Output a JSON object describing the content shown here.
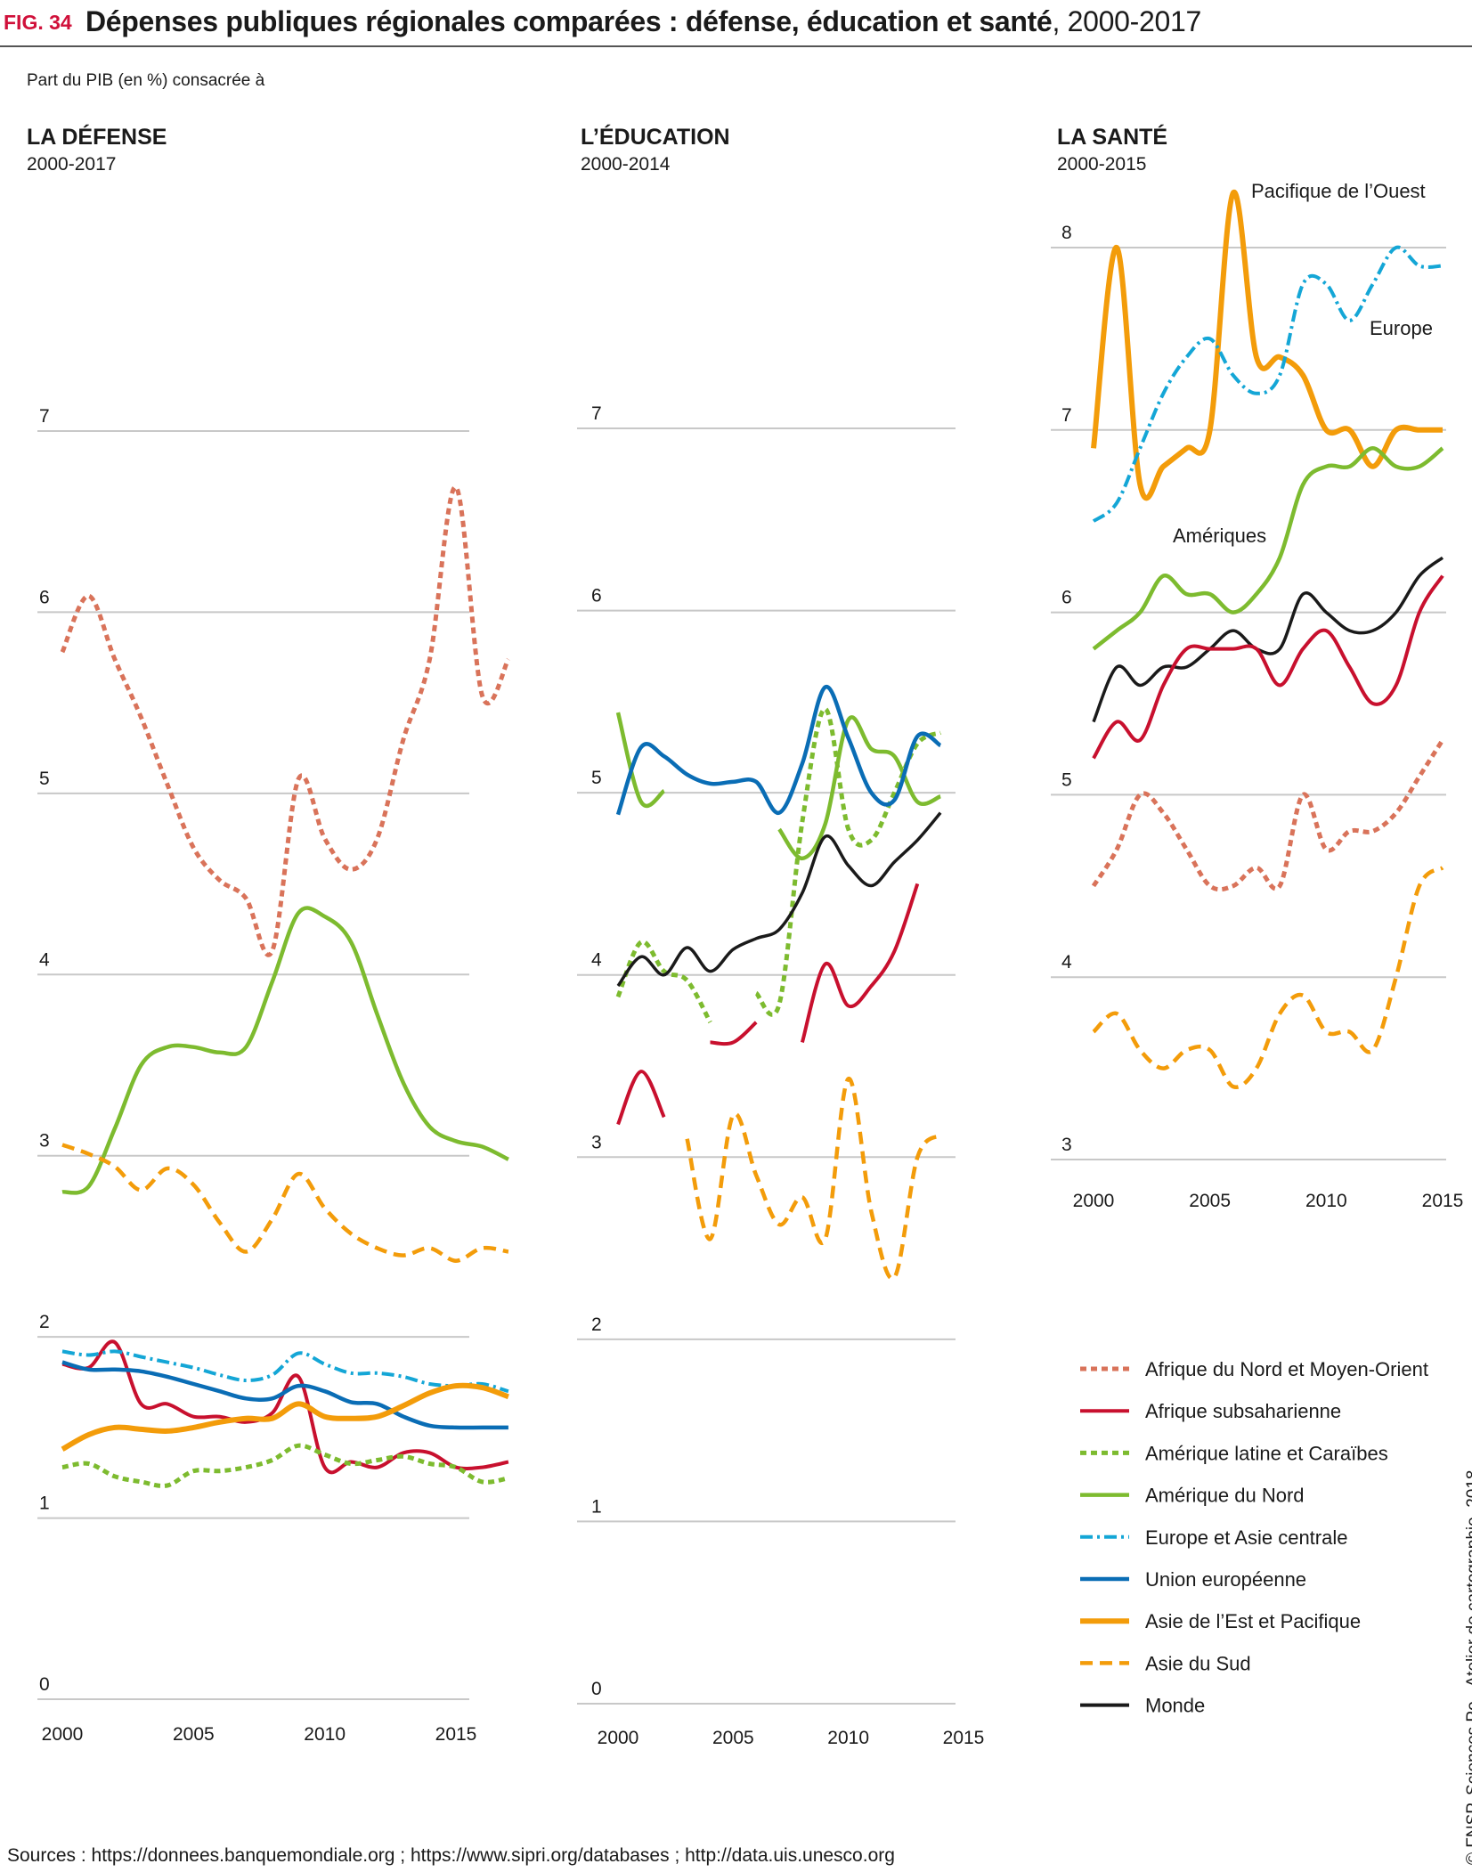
{
  "header": {
    "fig_label": "FIG. 34",
    "title_bold": "Dépenses publiques régionales comparées : défense, éducation et santé",
    "title_rest": ", 2000-2017"
  },
  "subtitle": "Part du PIB (en %) consacrée à",
  "sources": "Sources : https://donnees.banquemondiale.org ; https://www.sipri.org/databases ; http://data.uis.unesco.org",
  "credit": "© FNSP. Sciences Po - Atelier de cartographie, 2018",
  "colors": {
    "mena": "#d9735a",
    "ssa": "#c8102e",
    "lac": "#7dbb2f",
    "na": "#7dbb2f",
    "eca": "#14a6d6",
    "eu": "#0a6db5",
    "eap": "#f39c0a",
    "sa": "#f39c0a",
    "world": "#1a1a1a",
    "grid": "#c8c8c8"
  },
  "chart_data": [
    {
      "type": "line",
      "title": "LA DÉFENSE",
      "period": "2000-2017",
      "xlim": [
        2000,
        2017.5
      ],
      "ylim": [
        0,
        7
      ],
      "yticks": [
        0,
        1,
        2,
        3,
        4,
        5,
        6,
        7
      ],
      "xticks": [
        2000,
        2005,
        2010,
        2015
      ],
      "annotations": [],
      "series": [
        {
          "key": "mena",
          "x": [
            2000,
            2001,
            2002,
            2003,
            2004,
            2005,
            2006,
            2007,
            2008,
            2009,
            2010,
            2011,
            2012,
            2013,
            2014,
            2015,
            2016,
            2017
          ],
          "y": [
            5.78,
            6.09,
            5.74,
            5.42,
            5.05,
            4.7,
            4.52,
            4.42,
            4.13,
            5.08,
            4.75,
            4.58,
            4.75,
            5.3,
            5.74,
            6.69,
            5.54,
            5.74
          ]
        },
        {
          "key": "ssa",
          "x": [
            2000,
            2001,
            2002,
            2003,
            2004,
            2005,
            2006,
            2007,
            2008,
            2009,
            2010,
            2011,
            2012,
            2013,
            2014,
            2015,
            2016,
            2017
          ],
          "y": [
            1.85,
            1.83,
            1.97,
            1.63,
            1.63,
            1.56,
            1.56,
            1.53,
            1.58,
            1.78,
            1.28,
            1.31,
            1.28,
            1.36,
            1.36,
            1.28,
            1.28,
            1.31
          ]
        },
        {
          "key": "lac",
          "x": [
            2000,
            2001,
            2002,
            2003,
            2004,
            2005,
            2006,
            2007,
            2008,
            2009,
            2010,
            2011,
            2012,
            2013,
            2014,
            2015,
            2016,
            2017
          ],
          "y": [
            1.28,
            1.3,
            1.23,
            1.2,
            1.18,
            1.26,
            1.26,
            1.28,
            1.32,
            1.4,
            1.35,
            1.3,
            1.32,
            1.34,
            1.3,
            1.28,
            1.2,
            1.22
          ]
        },
        {
          "key": "na",
          "x": [
            2000,
            2001,
            2002,
            2003,
            2004,
            2005,
            2006,
            2007,
            2008,
            2009,
            2010,
            2011,
            2012,
            2013,
            2014,
            2015,
            2016,
            2017
          ],
          "y": [
            2.8,
            2.83,
            3.15,
            3.5,
            3.6,
            3.6,
            3.57,
            3.6,
            3.96,
            4.34,
            4.32,
            4.18,
            3.78,
            3.4,
            3.16,
            3.08,
            3.05,
            2.98
          ]
        },
        {
          "key": "eca",
          "x": [
            2000,
            2001,
            2002,
            2003,
            2004,
            2005,
            2006,
            2007,
            2008,
            2009,
            2010,
            2011,
            2012,
            2013,
            2014,
            2015,
            2016,
            2017
          ],
          "y": [
            1.92,
            1.9,
            1.92,
            1.89,
            1.86,
            1.83,
            1.79,
            1.76,
            1.79,
            1.91,
            1.85,
            1.8,
            1.8,
            1.78,
            1.74,
            1.73,
            1.74,
            1.7
          ]
        },
        {
          "key": "eu",
          "x": [
            2000,
            2001,
            2002,
            2003,
            2004,
            2005,
            2006,
            2007,
            2008,
            2009,
            2010,
            2011,
            2012,
            2013,
            2014,
            2015,
            2016,
            2017
          ],
          "y": [
            1.86,
            1.82,
            1.82,
            1.81,
            1.78,
            1.74,
            1.7,
            1.66,
            1.66,
            1.73,
            1.7,
            1.64,
            1.63,
            1.56,
            1.51,
            1.5,
            1.5,
            1.5
          ]
        },
        {
          "key": "eap",
          "x": [
            2000,
            2001,
            2002,
            2003,
            2004,
            2005,
            2006,
            2007,
            2008,
            2009,
            2010,
            2011,
            2012,
            2013,
            2014,
            2015,
            2016,
            2017
          ],
          "y": [
            1.38,
            1.46,
            1.5,
            1.49,
            1.48,
            1.5,
            1.53,
            1.55,
            1.55,
            1.63,
            1.56,
            1.55,
            1.56,
            1.62,
            1.69,
            1.73,
            1.72,
            1.67
          ]
        },
        {
          "key": "sa",
          "x": [
            2000,
            2001,
            2002,
            2003,
            2004,
            2005,
            2006,
            2007,
            2008,
            2009,
            2010,
            2011,
            2012,
            2013,
            2014,
            2015,
            2016,
            2017
          ],
          "y": [
            3.06,
            3.01,
            2.94,
            2.81,
            2.93,
            2.84,
            2.63,
            2.47,
            2.65,
            2.9,
            2.71,
            2.57,
            2.49,
            2.45,
            2.49,
            2.42,
            2.49,
            2.47
          ]
        }
      ]
    },
    {
      "type": "line",
      "title": "L’ÉDUCATION",
      "period": "2000-2014",
      "xlim": [
        2000,
        2015
      ],
      "ylim": [
        0,
        7
      ],
      "yticks": [
        0,
        1,
        2,
        3,
        4,
        5,
        6,
        7
      ],
      "xticks": [
        2000,
        2005,
        2010,
        2015
      ],
      "annotations": [],
      "series": [
        {
          "key": "ssa",
          "segments": [
            {
              "x": [
                2000,
                2001,
                2002
              ],
              "y": [
                3.18,
                3.47,
                3.22
              ]
            },
            {
              "x": [
                2004,
                2005,
                2006
              ],
              "y": [
                3.63,
                3.63,
                3.74
              ]
            },
            {
              "x": [
                2008,
                2009,
                2010,
                2011,
                2012,
                2013
              ],
              "y": [
                3.63,
                4.06,
                3.83,
                3.94,
                4.13,
                4.5
              ]
            }
          ]
        },
        {
          "key": "lac",
          "segments": [
            {
              "x": [
                2000,
                2001,
                2002,
                2003,
                2004
              ],
              "y": [
                3.88,
                4.18,
                4.02,
                3.97,
                3.74
              ]
            },
            {
              "x": [
                2006,
                2007,
                2008,
                2009,
                2010,
                2011,
                2012,
                2013,
                2014
              ],
              "y": [
                3.9,
                3.84,
                4.84,
                5.46,
                4.8,
                4.74,
                5.0,
                5.27,
                5.33
              ]
            }
          ]
        },
        {
          "key": "na",
          "segments": [
            {
              "x": [
                2000,
                2001,
                2002
              ],
              "y": [
                5.44,
                4.95,
                5.01
              ]
            },
            {
              "x": [
                2007,
                2008,
                2009,
                2010,
                2011,
                2012,
                2013,
                2014
              ],
              "y": [
                4.8,
                4.64,
                4.83,
                5.4,
                5.24,
                5.2,
                4.95,
                4.98
              ]
            }
          ]
        },
        {
          "key": "eu",
          "segments": [
            {
              "x": [
                2000,
                2001,
                2002,
                2003,
                2004,
                2005,
                2006,
                2007,
                2008,
                2009,
                2010,
                2011,
                2012,
                2013,
                2014
              ],
              "y": [
                4.88,
                5.25,
                5.2,
                5.1,
                5.05,
                5.06,
                5.06,
                4.89,
                5.16,
                5.58,
                5.3,
                5.0,
                4.96,
                5.31,
                5.26
              ]
            }
          ]
        },
        {
          "key": "sa",
          "segments": [
            {
              "x": [
                2003,
                2004,
                2005,
                2006,
                2007,
                2008,
                2009,
                2010,
                2011,
                2012,
                2013,
                2014
              ],
              "y": [
                3.1,
                2.55,
                3.23,
                2.9,
                2.63,
                2.78,
                2.55,
                3.43,
                2.7,
                2.34,
                3.0,
                3.12
              ]
            }
          ]
        },
        {
          "key": "world",
          "segments": [
            {
              "x": [
                2000,
                2001,
                2002,
                2003,
                2004,
                2005,
                2006,
                2007,
                2008,
                2009,
                2010,
                2011,
                2012,
                2013,
                2014
              ],
              "y": [
                3.94,
                4.1,
                4.0,
                4.15,
                4.02,
                4.14,
                4.2,
                4.25,
                4.45,
                4.76,
                4.6,
                4.49,
                4.62,
                4.74,
                4.89
              ]
            }
          ]
        }
      ]
    },
    {
      "type": "line",
      "title": "LA SANTÉ",
      "period": "2000-2015",
      "xlim": [
        2000,
        2015
      ],
      "ylim": [
        3,
        8.3
      ],
      "yticks": [
        3,
        4,
        5,
        6,
        7,
        8
      ],
      "xticks": [
        2000,
        2005,
        2010,
        2015
      ],
      "annotations": [
        "Pacifique de l’Ouest",
        "Europe",
        "Amériques"
      ],
      "series": [
        {
          "key": "eap",
          "x": [
            2000,
            2001,
            2002,
            2003,
            2004,
            2005,
            2006,
            2007,
            2008,
            2009,
            2010,
            2011,
            2012,
            2013,
            2014,
            2015
          ],
          "y": [
            6.9,
            8.0,
            6.7,
            6.8,
            6.9,
            7.0,
            8.3,
            7.4,
            7.4,
            7.3,
            7.0,
            7.0,
            6.8,
            7.0,
            7.0,
            7.0
          ]
        },
        {
          "key": "eca",
          "x": [
            2000,
            2001,
            2002,
            2003,
            2004,
            2005,
            2006,
            2007,
            2008,
            2009,
            2010,
            2011,
            2012,
            2013,
            2014,
            2015
          ],
          "y": [
            6.5,
            6.6,
            6.9,
            7.2,
            7.4,
            7.5,
            7.3,
            7.2,
            7.3,
            7.8,
            7.8,
            7.6,
            7.8,
            8.0,
            7.9,
            7.9
          ]
        },
        {
          "key": "na",
          "x": [
            2000,
            2001,
            2002,
            2003,
            2004,
            2005,
            2006,
            2007,
            2008,
            2009,
            2010,
            2011,
            2012,
            2013,
            2014,
            2015
          ],
          "y": [
            5.8,
            5.9,
            6.0,
            6.2,
            6.1,
            6.1,
            6.0,
            6.1,
            6.3,
            6.7,
            6.8,
            6.8,
            6.9,
            6.8,
            6.8,
            6.9
          ]
        },
        {
          "key": "world",
          "x": [
            2000,
            2001,
            2002,
            2003,
            2004,
            2005,
            2006,
            2007,
            2008,
            2009,
            2010,
            2011,
            2012,
            2013,
            2014,
            2015
          ],
          "y": [
            5.4,
            5.7,
            5.6,
            5.7,
            5.7,
            5.8,
            5.9,
            5.8,
            5.8,
            6.1,
            6.0,
            5.9,
            5.9,
            6.0,
            6.2,
            6.3
          ]
        },
        {
          "key": "ssa",
          "x": [
            2000,
            2001,
            2002,
            2003,
            2004,
            2005,
            2006,
            2007,
            2008,
            2009,
            2010,
            2011,
            2012,
            2013,
            2014,
            2015
          ],
          "y": [
            5.2,
            5.4,
            5.3,
            5.6,
            5.8,
            5.8,
            5.8,
            5.8,
            5.6,
            5.8,
            5.9,
            5.7,
            5.5,
            5.6,
            6.0,
            6.2
          ]
        },
        {
          "key": "mena",
          "x": [
            2000,
            2001,
            2002,
            2003,
            2004,
            2005,
            2006,
            2007,
            2008,
            2009,
            2010,
            2011,
            2012,
            2013,
            2014,
            2015
          ],
          "y": [
            4.5,
            4.7,
            5.0,
            4.9,
            4.7,
            4.5,
            4.5,
            4.6,
            4.5,
            5.0,
            4.7,
            4.8,
            4.8,
            4.9,
            5.1,
            5.3
          ]
        },
        {
          "key": "sa",
          "x": [
            2000,
            2001,
            2002,
            2003,
            2004,
            2005,
            2006,
            2007,
            2008,
            2009,
            2010,
            2011,
            2012,
            2013,
            2014,
            2015
          ],
          "y": [
            3.7,
            3.8,
            3.6,
            3.5,
            3.6,
            3.6,
            3.4,
            3.5,
            3.8,
            3.9,
            3.7,
            3.7,
            3.6,
            4.0,
            4.5,
            4.6
          ]
        }
      ]
    }
  ],
  "legend": [
    {
      "key": "mena",
      "label": "Afrique du Nord et Moyen-Orient"
    },
    {
      "key": "ssa",
      "label": "Afrique subsaharienne"
    },
    {
      "key": "lac",
      "label": "Amérique latine et Caraïbes"
    },
    {
      "key": "na",
      "label": "Amérique du Nord"
    },
    {
      "key": "eca",
      "label": "Europe et Asie centrale"
    },
    {
      "key": "eu",
      "label": "Union européenne"
    },
    {
      "key": "eap",
      "label": "Asie de l’Est et Pacifique"
    },
    {
      "key": "sa",
      "label": "Asie du Sud"
    },
    {
      "key": "world",
      "label": "Monde"
    }
  ]
}
